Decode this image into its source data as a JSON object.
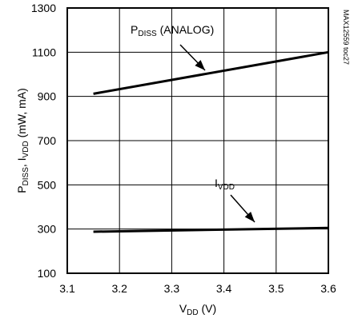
{
  "chart_data": {
    "type": "line",
    "x": [
      3.15,
      3.6
    ],
    "series": [
      {
        "values": [
          912,
          1100
        ]
      },
      {
        "values": [
          288,
          305
        ]
      }
    ],
    "annotations": [
      {
        "main": "P",
        "sub": "DISS",
        "rest": " (ANALOG)"
      },
      {
        "main": "I",
        "sub": "VDD",
        "rest": ""
      }
    ],
    "xlabel": {
      "main": "V",
      "sub": "DD",
      "rest": " (V)"
    },
    "ylabel": {
      "p1": "P",
      "s1": "DISS",
      "p2": ", I",
      "s2": "VDD",
      "p3": " (mW, mA)"
    },
    "xticks": [
      "3.1",
      "3.2",
      "3.3",
      "3.4",
      "3.5",
      "3.6"
    ],
    "yticks": [
      "100",
      "300",
      "500",
      "700",
      "900",
      "1100",
      "1300"
    ],
    "xlim": [
      3.1,
      3.6
    ],
    "ylim": [
      100,
      1300
    ],
    "grid": true,
    "side_label": "MAX12559 toc27"
  }
}
